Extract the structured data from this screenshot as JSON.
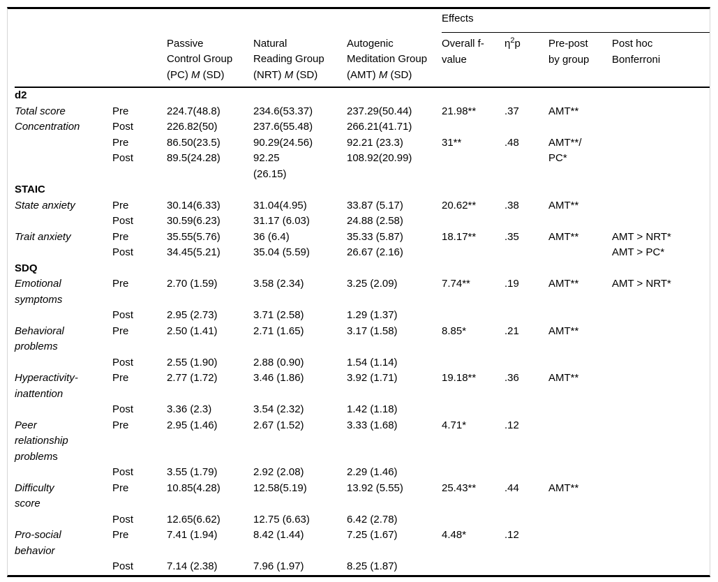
{
  "table": {
    "effects_header": "Effects",
    "columns": {
      "groups": [
        {
          "line1": "Passive",
          "line2": "Control Group",
          "paren": "(PC)",
          "m": "M",
          "sd": "(SD)"
        },
        {
          "line1": "Natural",
          "line2": "Reading Group",
          "paren": "(NRT)",
          "m": "M",
          "sd": "(SD)"
        },
        {
          "line1": "Autogenic",
          "line2": "Meditation Group",
          "paren": "(AMT)",
          "m": "M",
          "sd": "(SD)"
        }
      ],
      "effects": {
        "f": "Overall f-\nvalue",
        "eta_base": "η",
        "eta_sup": "2",
        "eta_sub": "p",
        "prepost": "Pre-post\nby group",
        "posthoc": "Post hoc\nBonferroni"
      }
    },
    "rows": [
      {
        "type": "section",
        "label": "d2"
      },
      {
        "type": "data",
        "label": "Total score",
        "period": "Pre",
        "pc": "224.7(48.8)",
        "nrt": "234.6(53.37)",
        "amt": "237.29(50.44)",
        "f": "21.98**",
        "eta": ".37",
        "prepost": "AMT**",
        "posthoc": ""
      },
      {
        "type": "data",
        "label": "Concentration",
        "period": "Post",
        "pc": "226.82(50)",
        "nrt": "237.6(55.48)",
        "amt": "266.21(41.71)",
        "f": "",
        "eta": "",
        "prepost": "",
        "posthoc": ""
      },
      {
        "type": "data",
        "label": "",
        "period": "Pre",
        "pc": "86.50(23.5)",
        "nrt": "90.29(24.56)",
        "amt": "92.21 (23.3)",
        "f": "31**",
        "eta": ".48",
        "prepost": "AMT**/",
        "posthoc": ""
      },
      {
        "type": "data",
        "label": "",
        "period": "Post",
        "pc": "89.5(24.28)",
        "nrt": "92.25\n(26.15)",
        "amt": "108.92(20.99)",
        "f": "",
        "eta": "",
        "prepost": "PC*",
        "posthoc": ""
      },
      {
        "type": "section",
        "label": "STAIC"
      },
      {
        "type": "data",
        "label": "State anxiety",
        "period": "Pre",
        "pc": "30.14(6.33)",
        "nrt": "31.04(4.95)",
        "amt": "33.87 (5.17)",
        "f": "20.62**",
        "eta": ".38",
        "prepost": "AMT**",
        "posthoc": ""
      },
      {
        "type": "data",
        "label": "",
        "period": "Post",
        "pc": "30.59(6.23)",
        "nrt": "31.17 (6.03)",
        "amt": "24.88 (2.58)",
        "f": "",
        "eta": "",
        "prepost": "",
        "posthoc": ""
      },
      {
        "type": "data",
        "label": "Trait anxiety",
        "period": "Pre",
        "pc": "35.55(5.76)",
        "nrt": "36 (6.4)",
        "amt": "35.33 (5.87)",
        "f": "18.17**",
        "eta": ".35",
        "prepost": "AMT**",
        "posthoc": "AMT > NRT*"
      },
      {
        "type": "data",
        "label": "",
        "period": "Post",
        "pc": "34.45(5.21)",
        "nrt": "35.04 (5.59)",
        "amt": "26.67 (2.16)",
        "f": "",
        "eta": "",
        "prepost": "",
        "posthoc": "AMT > PC*"
      },
      {
        "type": "section",
        "label": "SDQ"
      },
      {
        "type": "data",
        "label": "Emotional\nsymptoms",
        "period": "Pre",
        "pc": "2.70 (1.59)",
        "nrt": "3.58 (2.34)",
        "amt": "3.25 (2.09)",
        "f": "7.74**",
        "eta": ".19",
        "prepost": "AMT**",
        "posthoc": "AMT > NRT*"
      },
      {
        "type": "data",
        "label": "",
        "period": "Post",
        "pc": "2.95 (2.73)",
        "nrt": "3.71 (2.58)",
        "amt": "1.29 (1.37)",
        "f": "",
        "eta": "",
        "prepost": "",
        "posthoc": ""
      },
      {
        "type": "data",
        "label": "Behavioral\nproblems",
        "period": "Pre",
        "pc": "2.50 (1.41)",
        "nrt": "2.71 (1.65)",
        "amt": "3.17 (1.58)",
        "f": "8.85*",
        "eta": ".21",
        "prepost": "AMT**",
        "posthoc": ""
      },
      {
        "type": "data",
        "label": "",
        "period": "Post",
        "pc": "2.55 (1.90)",
        "nrt": "2.88 (0.90)",
        "amt": "1.54 (1.14)",
        "f": "",
        "eta": "",
        "prepost": "",
        "posthoc": ""
      },
      {
        "type": "data",
        "label": "Hyperactivity-\ninattention",
        "period": "Pre",
        "pc": "2.77 (1.72)",
        "nrt": "3.46 (1.86)",
        "amt": "3.92 (1.71)",
        "f": "19.18**",
        "eta": ".36",
        "prepost": "AMT**",
        "posthoc": ""
      },
      {
        "type": "data",
        "label": "",
        "period": "Post",
        "pc": "3.36 (2.3)",
        "nrt": "3.54 (2.32)",
        "amt": "1.42 (1.18)",
        "f": "",
        "eta": "",
        "prepost": "",
        "posthoc": ""
      },
      {
        "type": "data",
        "label": "Peer\nrelationship\nproblem",
        "label_suffix": "s",
        "period": "Pre",
        "pc": "2.95 (1.46)",
        "nrt": "2.67 (1.52)",
        "amt": "3.33 (1.68)",
        "f": "4.71*",
        "eta": ".12",
        "prepost": "",
        "posthoc": ""
      },
      {
        "type": "data",
        "label": "",
        "period": "Post",
        "pc": "3.55 (1.79)",
        "nrt": "2.92 (2.08)",
        "amt": "2.29 (1.46)",
        "f": "",
        "eta": "",
        "prepost": "",
        "posthoc": ""
      },
      {
        "type": "data",
        "label": "Difficulty\nscore",
        "period": "Pre",
        "pc": "10.85(4.28)",
        "nrt": "12.58(5.19)",
        "amt": "13.92 (5.55)",
        "f": "25.43**",
        "eta": ".44",
        "prepost": "AMT**",
        "posthoc": ""
      },
      {
        "type": "data",
        "label": "",
        "period": "Post",
        "pc": "12.65(6.62)",
        "nrt": "12.75 (6.63)",
        "amt": "6.42 (2.78)",
        "f": "",
        "eta": "",
        "prepost": "",
        "posthoc": ""
      },
      {
        "type": "data",
        "label": "Pro-social\nbehavior",
        "period": "Pre",
        "pc": "7.41 (1.94)",
        "nrt": "8.42 (1.44)",
        "amt": "7.25 (1.67)",
        "f": "4.48*",
        "eta": ".12",
        "prepost": "",
        "posthoc": ""
      },
      {
        "type": "data",
        "label": "",
        "period": "Post",
        "pc": "7.14 (2.38)",
        "nrt": "7.96 (1.97)",
        "amt": "8.25 (1.87)",
        "f": "",
        "eta": "",
        "prepost": "",
        "posthoc": ""
      }
    ]
  }
}
